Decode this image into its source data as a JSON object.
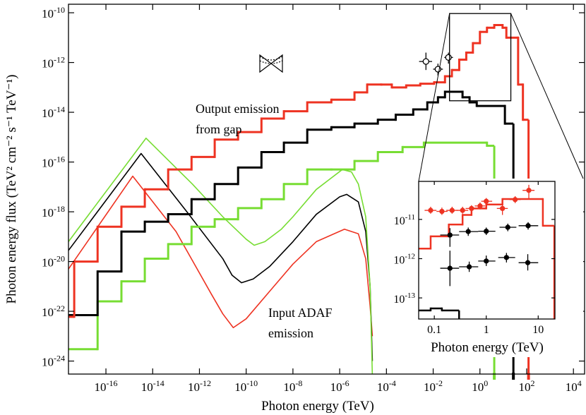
{
  "chart_data": [
    {
      "type": "line",
      "xlabel": "Photon energy (TeV)",
      "ylabel": "Photon energy flux (TeV² cm⁻² s⁻¹ TeV⁻¹)",
      "log_x": true,
      "log_y": true,
      "end_ticks": true,
      "xlim": [
        2.5e-18,
        30000.0
      ],
      "ylim": [
        3e-25,
        2.2e-10
      ],
      "xticks": [
        {
          "value": 1e-16,
          "label": "10-16"
        },
        {
          "value": 1e-14,
          "label": "10-14"
        },
        {
          "value": 1e-12,
          "label": "10-12"
        },
        {
          "value": 1e-10,
          "label": "10-10"
        },
        {
          "value": 1e-08,
          "label": "10-8"
        },
        {
          "value": 1e-06,
          "label": "10-6"
        },
        {
          "value": 0.0001,
          "label": "10-4"
        },
        {
          "value": 0.01,
          "label": "10-2"
        },
        {
          "value": 1,
          "label": "100"
        },
        {
          "value": 100,
          "label": "102"
        },
        {
          "value": 10000.0,
          "label": "104"
        }
      ],
      "yticks": [
        {
          "value": 1e-10,
          "label": "10-10"
        },
        {
          "value": 1e-12,
          "label": "10-12"
        },
        {
          "value": 1e-14,
          "label": "10-14"
        },
        {
          "value": 1e-16,
          "label": "10-16"
        },
        {
          "value": 1e-18,
          "label": "10-18"
        },
        {
          "value": 1e-20,
          "label": "10-20"
        },
        {
          "value": 1e-22,
          "label": "10-22"
        },
        {
          "value": 1e-24,
          "label": "10-24"
        }
      ],
      "annotations": [
        [
          "Output emission",
          "from gap"
        ],
        [
          "Input ADAF",
          "emission"
        ]
      ],
      "series": [
        {
          "kind": "line",
          "color": "#ee3322",
          "x": [
            2.5e-18,
            1.4e-15,
            1e-13,
            3.2e-12,
            1e-11,
            2.8e-11,
            1e-10,
            1e-09,
            1e-08,
            1e-07,
            1.6e-06,
            6.3e-06,
            1.3e-05,
            2e-05,
            2.5e-05
          ],
          "values": [
            5e-21,
            2.7e-17,
            1.6e-19,
            5e-22,
            7.9e-23,
            2.2e-23,
            5e-23,
            6.3e-22,
            7.9e-21,
            6.3e-20,
            2e-19,
            1.3e-19,
            1.3e-20,
            1.6e-22,
            1e-23
          ]
        },
        {
          "kind": "line",
          "color": "#000000",
          "x": [
            2.5e-18,
            3.2e-15,
            3.2e-13,
            1e-11,
            2.5e-11,
            6.3e-11,
            2e-10,
            1e-09,
            1e-08,
            1e-07,
            1e-06,
            2e-06,
            6.3e-06,
            1.3e-05,
            2e-05,
            2.5e-05
          ],
          "values": [
            2.8e-20,
            2.2e-16,
            8.9e-19,
            1.3e-20,
            2.8e-21,
            1.4e-21,
            2e-21,
            6.3e-21,
            6.3e-20,
            7.9e-19,
            4e-18,
            5e-18,
            2.5e-18,
            1.6e-19,
            1e-21,
            1e-24
          ]
        },
        {
          "kind": "line",
          "color": "#77dd33",
          "x": [
            2.5e-18,
            5.2e-15,
            5e-13,
            1e-11,
            1e-10,
            2.2e-10,
            6.3e-10,
            3.2e-09,
            1e-08,
            1e-07,
            1.3e-06,
            3.2e-06,
            6.3e-06,
            1.3e-05,
            2e-05,
            2.5e-05
          ],
          "values": [
            6.3e-20,
            9.1e-16,
            1.3e-17,
            6.3e-19,
            7.9e-20,
            4.5e-20,
            6.3e-20,
            2e-19,
            6.3e-19,
            7.9e-18,
            5e-17,
            4e-17,
            1.3e-17,
            6.3e-19,
            1e-21,
            2.5e-25
          ]
        },
        {
          "kind": "step",
          "color": "#77dd33",
          "bins": [
            2.5e-18,
            4.4e-17,
            4.6e-16,
            4.6e-15,
            4.6e-14,
            4.6e-13,
            4.5e-12,
            4.5e-11,
            4.5e-10,
            4.1e-09,
            4.1e-08,
            4.4e-07,
            4.3e-06,
            4.3e-05,
            0.00049,
            0.004,
            2,
            4.1
          ],
          "values": [
            3e-24,
            2.5e-22,
            1.6e-21,
            1.3e-20,
            5e-20,
            2.5e-19,
            5e-19,
            1.4e-18,
            3.2e-18,
            1.3e-17,
            5e-17,
            5e-17,
            1.1e-16,
            2.5e-16,
            4e-16,
            6e-16,
            4.5e-16
          ]
        },
        {
          "kind": "step",
          "color": "#000000",
          "bins": [
            2.5e-18,
            4.4e-17,
            4.6e-16,
            4.6e-15,
            4.6e-14,
            4.6e-13,
            4.5e-12,
            4.5e-11,
            4.5e-10,
            4.1e-09,
            4.1e-08,
            4.4e-07,
            4.3e-06,
            4.3e-05,
            0.00025,
            0.0014,
            0.0056,
            0.016,
            0.032,
            0.18,
            0.36,
            0.73,
            11.7,
            27
          ],
          "values": [
            7e-23,
            4e-21,
            1.6e-19,
            4e-19,
            8e-19,
            3.2e-18,
            1.3e-17,
            6e-17,
            2.5e-16,
            6e-16,
            2e-15,
            2.5e-15,
            3.5e-15,
            5e-15,
            8e-15,
            1.3e-14,
            2.5e-14,
            4e-14,
            6.7e-14,
            4e-14,
            2.5e-14,
            1.8e-14,
            3.5e-15
          ]
        },
        {
          "kind": "step",
          "color": "#ee3322",
          "bins": [
            2.5e-18,
            4.4e-18,
            4.4e-17,
            4.6e-16,
            4.6e-15,
            4.6e-14,
            4.6e-13,
            4.5e-12,
            4.5e-11,
            4.5e-10,
            4.1e-09,
            4.1e-08,
            4.4e-07,
            4.3e-06,
            1.5e-05,
            6e-05,
            0.00017,
            0.0007,
            0.0028,
            0.011,
            0.032,
            0.063,
            0.13,
            0.26,
            0.5,
            1.0,
            2.0,
            4.1,
            9.3,
            13.5,
            43,
            69,
            120
          ],
          "values": [
            6e-23,
            1e-20,
            2.5e-19,
            1.6e-18,
            8e-18,
            5e-17,
            1.6e-16,
            8e-16,
            1.6e-15,
            5.6e-15,
            1.1e-14,
            2.5e-14,
            3.2e-14,
            6.3e-14,
            1.3e-13,
            1.3e-13,
            1e-13,
            1.2e-13,
            1.4e-13,
            1.6e-13,
            2.8e-13,
            5e-13,
            1.3e-12,
            2.5e-12,
            6e-12,
            1.7e-11,
            2.5e-11,
            3.2e-11,
            2.5e-11,
            1e-11,
            1.3e-13,
            5e-15
          ]
        },
        {
          "kind": "points",
          "color": "#000000",
          "marker": "open",
          "x": [
            0.0049,
            0.016,
            0.045
          ],
          "xlo": [
            0.0025,
            0.01,
            0.03
          ],
          "xhi": [
            0.009,
            0.026,
            0.07
          ],
          "values": [
            1.1e-12,
            5.4e-13,
            1.6e-12
          ],
          "ylo": [
            5e-13,
            3e-13,
            9e-13
          ],
          "yhi": [
            2.5e-12,
            9e-13,
            2.5e-12
          ]
        }
      ]
    },
    {
      "type": "line",
      "xlabel": "Photon energy (TeV)",
      "log_x": true,
      "log_y": true,
      "zoom_box": true,
      "xlim": [
        0.05,
        21
      ],
      "ylim": [
        2.9e-14,
        9.3e-11
      ],
      "xticks": [
        0.1,
        1,
        10
      ],
      "yticks": [
        {
          "value": 1e-11,
          "label": "10-11"
        },
        {
          "value": 1e-12,
          "label": "10-12"
        },
        {
          "value": 1e-13,
          "label": "10-13"
        }
      ],
      "series": [
        {
          "kind": "step",
          "color": "#ee3322",
          "bins": [
            0.05,
            0.085,
            0.19,
            0.35,
            0.52,
            1,
            2.05,
            12.3,
            20.4
          ],
          "values": [
            1.8e-12,
            3.7e-12,
            7.4e-12,
            1.3e-11,
            1.9e-11,
            2.4e-11,
            3.3e-11,
            6.9e-12
          ]
        },
        {
          "kind": "step",
          "color": "#000000",
          "bins": [
            0.05,
            0.085,
            0.14,
            0.3
          ],
          "values": [
            4.8e-14,
            5.4e-14,
            4.8e-14
          ]
        },
        {
          "kind": "points",
          "color": "#ee3322",
          "marker": "filled",
          "x": [
            0.085,
            0.14,
            0.22,
            0.35,
            0.52,
            0.76,
            1.0,
            2.05,
            3.6,
            6.6
          ],
          "xlo": [
            0.065,
            0.11,
            0.17,
            0.27,
            0.4,
            0.6,
            0.8,
            1.6,
            2.8,
            5.0
          ],
          "xhi": [
            0.11,
            0.18,
            0.28,
            0.45,
            0.68,
            0.95,
            1.3,
            2.6,
            4.6,
            8.5
          ],
          "values": [
            1.7e-11,
            1.6e-11,
            1.7e-11,
            1.7e-11,
            1.9e-11,
            2.2e-11,
            2.9e-11,
            1.9e-11,
            3.2e-11,
            5.5e-11
          ],
          "ylo": [
            1.4e-11,
            1.3e-11,
            1.4e-11,
            1.4e-11,
            1.6e-11,
            1.8e-11,
            2.4e-11,
            1.3e-11,
            2.6e-11,
            3.3e-11
          ],
          "yhi": [
            2.1e-11,
            2e-11,
            2.1e-11,
            2.1e-11,
            2.3e-11,
            2.7e-11,
            3.5e-11,
            2.9e-11,
            3.9e-11,
            7.6e-11
          ]
        },
        {
          "kind": "points",
          "color": "#000000",
          "marker": "filled",
          "x": [
            0.2,
            0.45,
            1.0,
            2.6,
            6.4
          ],
          "xlo": [
            0.13,
            0.3,
            0.7,
            1.8,
            4.2
          ],
          "xhi": [
            0.3,
            0.7,
            1.5,
            3.8,
            10
          ],
          "values": [
            4e-12,
            4.9e-12,
            5e-12,
            6.3e-12,
            6.9e-12
          ],
          "ylo": [
            2e-12,
            3.8e-12,
            4e-12,
            5e-12,
            5.5e-12
          ],
          "yhi": [
            6e-12,
            6.2e-12,
            6.2e-12,
            7.8e-12,
            8.5e-12
          ]
        },
        {
          "kind": "points",
          "color": "#000000",
          "marker": "filled",
          "x": [
            0.2,
            0.47,
            1.0,
            2.45,
            6.3
          ],
          "xlo": [
            0.13,
            0.3,
            0.7,
            1.7,
            4.2
          ],
          "xhi": [
            0.3,
            0.7,
            1.5,
            3.6,
            10
          ],
          "values": [
            5.7e-13,
            6.2e-13,
            8.7e-13,
            1.07e-12,
            7.9e-13
          ],
          "ylo": [
            2e-13,
            4.6e-13,
            6.5e-13,
            8e-13,
            5e-13
          ],
          "yhi": [
            1.6e-12,
            8.4e-13,
            1.2e-12,
            1.4e-12,
            1.3e-12
          ]
        }
      ]
    }
  ]
}
